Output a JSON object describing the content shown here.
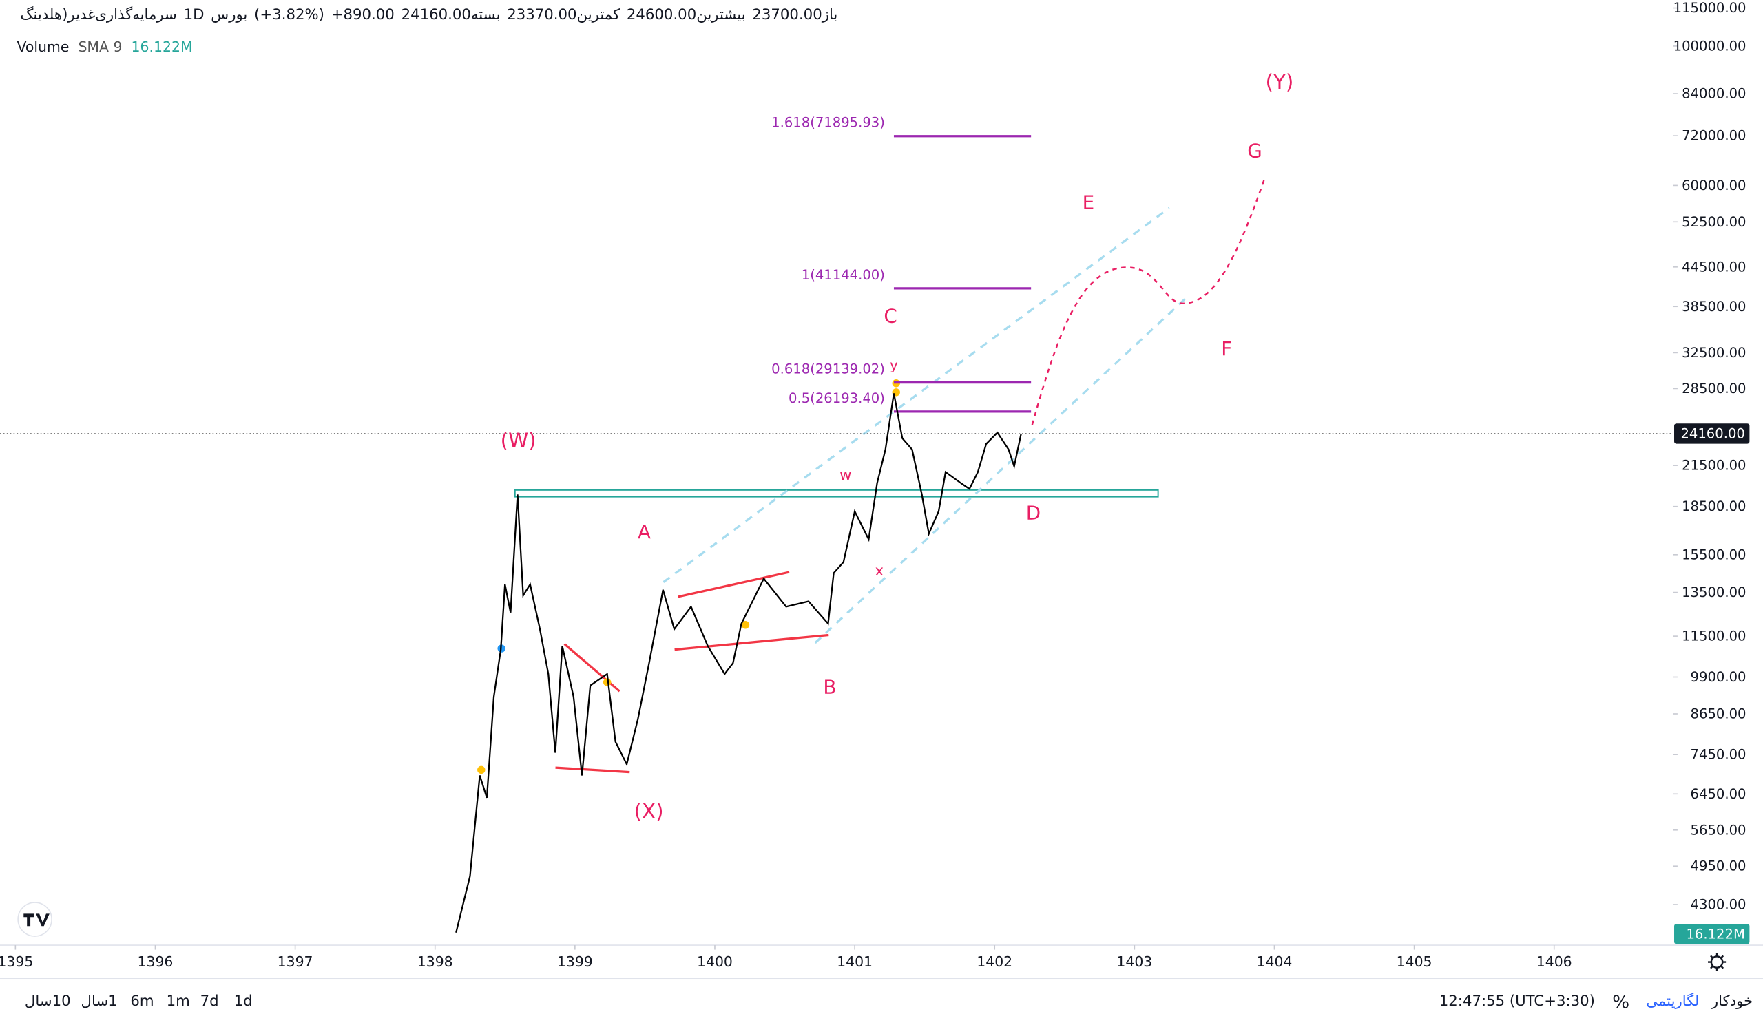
{
  "header": {
    "name": "سرمایه‌گذاری‌غدیر(هلدینگ",
    "interval": "1D",
    "exchange": "بورس",
    "change": "+890.00",
    "change_pct": "(+3.82%)",
    "close_label": "بسته",
    "close": "24160.00",
    "low_label": "کمترین",
    "low": "23370.00",
    "high_label": "بیشترین",
    "high": "24600.00",
    "open_label": "باز",
    "open": "23700.00"
  },
  "volume_legend": {
    "title": "Volume",
    "indicator": "SMA 9",
    "value": "16.122M"
  },
  "chart_data": {
    "type": "line",
    "color": "#000000",
    "log_scale": true,
    "x": [
      1398.15,
      1398.25,
      1398.32,
      1398.37,
      1398.42,
      1398.47,
      1398.5,
      1398.54,
      1398.59,
      1398.63,
      1398.68,
      1398.75,
      1398.81,
      1398.86,
      1398.91,
      1398.99,
      1399.05,
      1399.11,
      1399.23,
      1399.29,
      1399.37,
      1399.45,
      1399.53,
      1399.63,
      1399.71,
      1399.83,
      1399.95,
      1400.07,
      1400.13,
      1400.19,
      1400.35,
      1400.51,
      1400.67,
      1400.81,
      1400.85,
      1400.92,
      1401.0,
      1401.1,
      1401.16,
      1401.22,
      1401.28,
      1401.34,
      1401.41,
      1401.48,
      1401.53,
      1401.6,
      1401.65,
      1401.76,
      1401.82,
      1401.88,
      1401.94,
      1402.02,
      1402.1,
      1402.14,
      1402.19
    ],
    "values": [
      3880,
      4770,
      6900,
      6360,
      9210,
      10950,
      13900,
      12540,
      19330,
      13350,
      13900,
      11800,
      10010,
      7500,
      11090,
      9210,
      6900,
      9600,
      10010,
      7810,
      7190,
      8480,
      10420,
      13630,
      11800,
      12810,
      11090,
      10010,
      10420,
      12040,
      14200,
      12810,
      13070,
      12040,
      14490,
      15090,
      18170,
      16400,
      20150,
      22800,
      28000,
      23760,
      22800,
      19330,
      16740,
      18170,
      20990,
      20150,
      19730,
      20990,
      23260,
      24250,
      22800,
      21430,
      24160
    ],
    "xlim": [
      1394.89,
      1406.85
    ],
    "xticks": [
      1395,
      1396,
      1397,
      1398,
      1399,
      1400,
      1401,
      1402,
      1403,
      1404,
      1405,
      1406
    ],
    "ylim": [
      3720,
      118400
    ],
    "yticks": [
      {
        "value": 115000,
        "label": "115000.00"
      },
      {
        "value": 100000,
        "label": "100000.00"
      },
      {
        "value": 84000,
        "label": "84000.00"
      },
      {
        "value": 72000,
        "label": "72000.00"
      },
      {
        "value": 60000,
        "label": "60000.00"
      },
      {
        "value": 52500,
        "label": "52500.00"
      },
      {
        "value": 44500,
        "label": "44500.00"
      },
      {
        "value": 38500,
        "label": "38500.00"
      },
      {
        "value": 32500,
        "label": "32500.00"
      },
      {
        "value": 28500,
        "label": "28500.00"
      },
      {
        "value": 21500,
        "label": "21500.00"
      },
      {
        "value": 18500,
        "label": "18500.00"
      },
      {
        "value": 15500,
        "label": "15500.00"
      },
      {
        "value": 13500,
        "label": "13500.00"
      },
      {
        "value": 11500,
        "label": "11500.00"
      },
      {
        "value": 9900,
        "label": "9900.00"
      },
      {
        "value": 8650,
        "label": "8650.00"
      },
      {
        "value": 7450,
        "label": "7450.00"
      },
      {
        "value": 6450,
        "label": "6450.00"
      },
      {
        "value": 5650,
        "label": "5650.00"
      },
      {
        "value": 4950,
        "label": "4950.00"
      },
      {
        "value": 4300,
        "label": "4300.00"
      }
    ],
    "last_price": {
      "value": 24160,
      "label": "24160.00"
    },
    "fib_color": "#9c27b0",
    "fib_levels": [
      {
        "value": 71895.93,
        "label": "1.618(71895.93)"
      },
      {
        "value": 41144,
        "label": "1(41144.00)"
      },
      {
        "value": 29139.02,
        "label": "0.618(29139.02)"
      },
      {
        "value": 26193.4,
        "label": "0.5(26193.40)"
      }
    ],
    "wave_color": "#e91e63",
    "wave_labels": [
      "(W)",
      "(X)",
      "(Y)",
      "A",
      "B",
      "C",
      "D",
      "E",
      "F",
      "G",
      "w",
      "x",
      "y"
    ]
  },
  "toolbar": {
    "ranges": [
      "10سال",
      "1سال",
      "6m",
      "1m",
      "7d",
      "1d"
    ],
    "clock": "12:47:55 (UTC+3:30)",
    "percent": "%",
    "log": "لگاریتمی",
    "auto": "خودکار"
  }
}
